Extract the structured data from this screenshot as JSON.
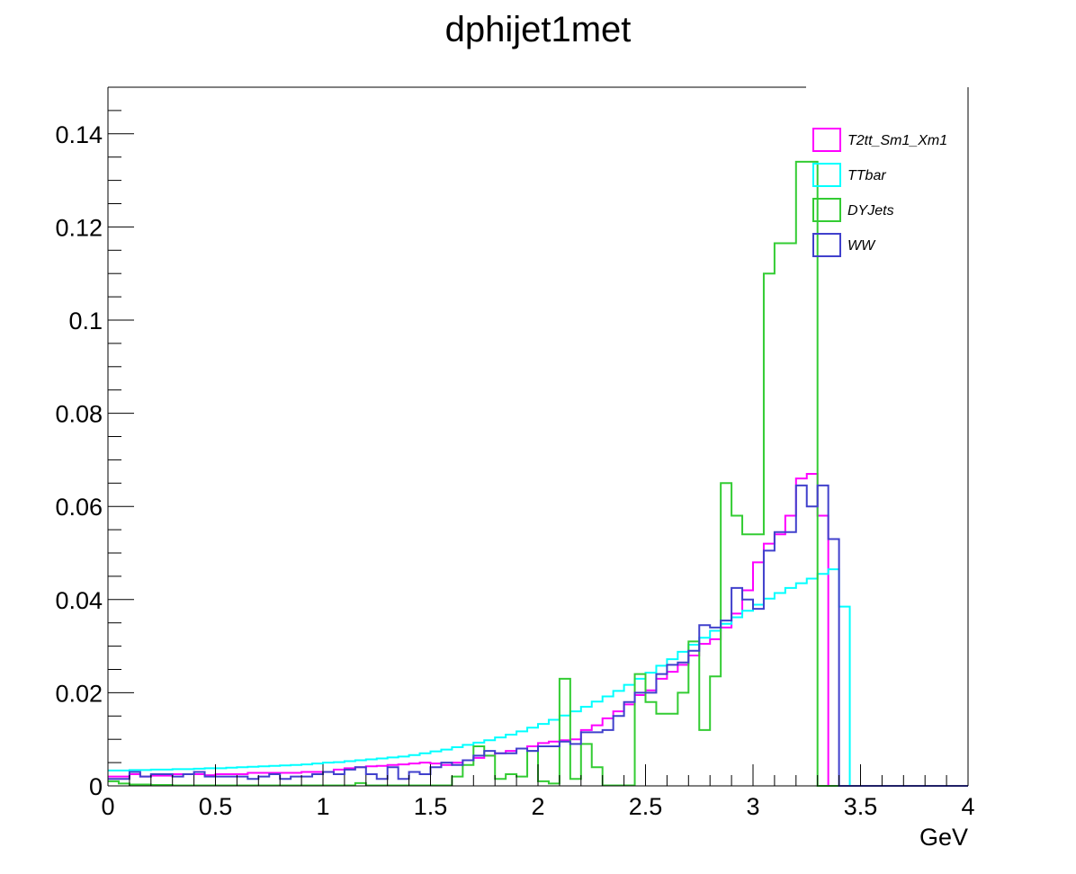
{
  "chart_data": {
    "type": "line",
    "title": "dphijet1met",
    "xlabel": "GeV",
    "ylabel": "",
    "xlim": [
      0,
      4
    ],
    "ylim": [
      0,
      0.15
    ],
    "x_ticks": [
      "0",
      "0.5",
      "1",
      "1.5",
      "2",
      "2.5",
      "3",
      "3.5",
      "4"
    ],
    "y_ticks": [
      "0",
      "0.02",
      "0.04",
      "0.06",
      "0.08",
      "0.1",
      "0.12",
      "0.14"
    ],
    "grid": false,
    "legend_position": "top-right",
    "bin_width": 0.05,
    "series": [
      {
        "name": "T2tt_Sm1_Xm1",
        "color": "#ff00ff",
        "values": [
          0.002,
          0.002,
          0.0025,
          0.002,
          0.0022,
          0.0022,
          0.0025,
          0.0025,
          0.0025,
          0.0023,
          0.0025,
          0.0025,
          0.0025,
          0.0028,
          0.0028,
          0.0028,
          0.0028,
          0.0028,
          0.003,
          0.003,
          0.003,
          0.0035,
          0.0038,
          0.004,
          0.0042,
          0.0043,
          0.0045,
          0.0046,
          0.0048,
          0.005,
          0.0048,
          0.0045,
          0.005,
          0.0055,
          0.006,
          0.0065,
          0.007,
          0.0075,
          0.008,
          0.0085,
          0.0092,
          0.0095,
          0.0098,
          0.01,
          0.012,
          0.013,
          0.0145,
          0.016,
          0.0175,
          0.0195,
          0.0205,
          0.023,
          0.0245,
          0.026,
          0.028,
          0.0305,
          0.0315,
          0.034,
          0.037,
          0.042,
          0.048,
          0.052,
          0.054,
          0.058,
          0.066,
          0.067,
          0.058,
          0,
          0,
          0,
          0,
          0,
          0,
          0,
          0,
          0,
          0,
          0,
          0,
          0
        ]
      },
      {
        "name": "TTbar",
        "color": "#00ffff",
        "values": [
          0.0033,
          0.0033,
          0.0034,
          0.0034,
          0.0035,
          0.0035,
          0.0036,
          0.0036,
          0.0037,
          0.0038,
          0.0038,
          0.0039,
          0.004,
          0.0041,
          0.0042,
          0.0043,
          0.0044,
          0.0045,
          0.0046,
          0.0048,
          0.005,
          0.0051,
          0.0053,
          0.0055,
          0.0057,
          0.0059,
          0.0061,
          0.0063,
          0.0066,
          0.007,
          0.0074,
          0.0078,
          0.0083,
          0.0088,
          0.0093,
          0.0098,
          0.0104,
          0.011,
          0.0117,
          0.0125,
          0.0133,
          0.0142,
          0.0151,
          0.016,
          0.017,
          0.0181,
          0.0192,
          0.0204,
          0.0217,
          0.023,
          0.0243,
          0.0258,
          0.0272,
          0.0288,
          0.0303,
          0.0318,
          0.0333,
          0.0348,
          0.0362,
          0.0376,
          0.0389,
          0.0402,
          0.0414,
          0.0425,
          0.0435,
          0.0445,
          0.0455,
          0.0465,
          0.0385,
          0,
          0,
          0,
          0,
          0,
          0,
          0,
          0,
          0,
          0,
          0
        ]
      },
      {
        "name": "DYJets",
        "color": "#33cc33",
        "values": [
          0.001,
          0.0005,
          0.0003,
          0.0003,
          0.0002,
          0.0002,
          0.0001,
          0.0001,
          0.0001,
          0.0001,
          0.0001,
          0.0001,
          0.0001,
          0.0001,
          0.0001,
          0.0001,
          0.0001,
          0.0001,
          0.0001,
          0.0001,
          0.0001,
          0.0001,
          0.0001,
          0.0006,
          0.0001,
          0.0001,
          0.0001,
          0.0001,
          0.0001,
          0.0001,
          0.0001,
          0.0001,
          0.002,
          0.0045,
          0.0085,
          0.0065,
          0.0015,
          0.0025,
          0.002,
          0.0075,
          0.001,
          0.0005,
          0.023,
          0.0015,
          0.009,
          0.004,
          0.0001,
          0.0001,
          0.0001,
          0.024,
          0.018,
          0.0155,
          0.0155,
          0.02,
          0.031,
          0.012,
          0.0235,
          0.065,
          0.058,
          0.054,
          0.054,
          0.11,
          0.1165,
          0.1165,
          0.134,
          0.134,
          0,
          0,
          0,
          0,
          0,
          0,
          0,
          0,
          0,
          0,
          0,
          0,
          0,
          0
        ]
      },
      {
        "name": "WW",
        "color": "#4040cc",
        "values": [
          0.0015,
          0.0015,
          0.003,
          0.002,
          0.0025,
          0.0025,
          0.002,
          0.0025,
          0.003,
          0.002,
          0.002,
          0.002,
          0.002,
          0.0015,
          0.002,
          0.0025,
          0.0015,
          0.002,
          0.002,
          0.0025,
          0.003,
          0.0025,
          0.0035,
          0.004,
          0.0025,
          0.0015,
          0.004,
          0.0015,
          0.003,
          0.0025,
          0.004,
          0.005,
          0.0045,
          0.0055,
          0.0065,
          0.0075,
          0.007,
          0.007,
          0.008,
          0.0075,
          0.0085,
          0.0085,
          0.0095,
          0.009,
          0.0115,
          0.0115,
          0.012,
          0.015,
          0.018,
          0.02,
          0.02,
          0.024,
          0.026,
          0.0265,
          0.029,
          0.0345,
          0.034,
          0.0355,
          0.0425,
          0.04,
          0.038,
          0.0505,
          0.0545,
          0.0545,
          0.0645,
          0.06,
          0.0645,
          0.053,
          0,
          0,
          0,
          0,
          0,
          0,
          0,
          0,
          0,
          0,
          0,
          0
        ]
      }
    ]
  }
}
